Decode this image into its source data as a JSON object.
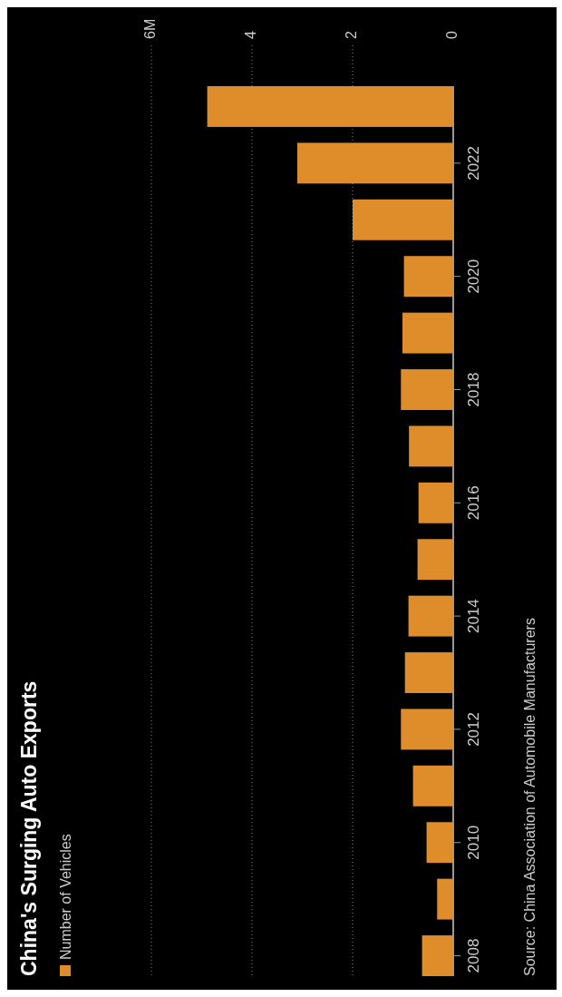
{
  "chart_data": {
    "type": "bar",
    "orientation": "horizontal",
    "title": "China's Surging Auto Exports",
    "categories": [
      null,
      "2022",
      null,
      "2020",
      null,
      "2018",
      null,
      "2016",
      null,
      "2014",
      null,
      "2012",
      null,
      "2010",
      null,
      "2008"
    ],
    "series": [
      {
        "name": "Number of Vehicles",
        "color": "#df8c2a",
        "values": [
          4.89,
          3.1,
          2.0,
          0.98,
          1.01,
          1.04,
          0.88,
          0.69,
          0.71,
          0.89,
          0.96,
          1.04,
          0.8,
          0.53,
          0.32,
          0.62
        ]
      }
    ],
    "xlim": [
      6,
      0
    ],
    "xticks": [
      {
        "value": 6,
        "label": "6M"
      },
      4,
      2,
      0
    ],
    "grid": "x",
    "legend": "bottom left",
    "annotations": [
      "Source: China Association of Automobile Manufacturers"
    ]
  }
}
